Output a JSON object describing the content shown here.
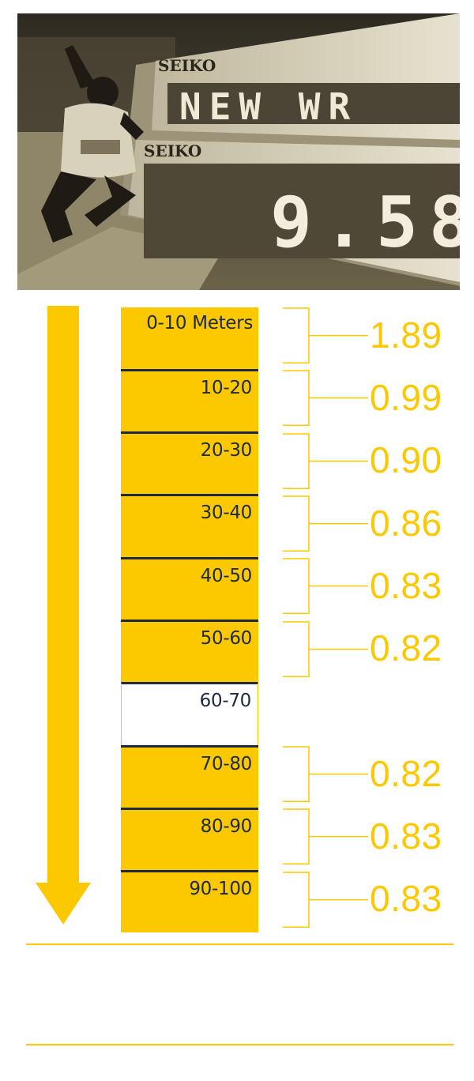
{
  "photo": {
    "board_brand_top": "SEIKO",
    "board_brand_bottom": "SEIKO",
    "board_message": "NEW WR",
    "board_time": "9.58"
  },
  "chart_data": {
    "type": "bar",
    "categories": [
      "0-10 Meters",
      "10-20",
      "20-30",
      "30-40",
      "40-50",
      "50-60",
      "60-70",
      "70-80",
      "80-90",
      "90-100"
    ],
    "series": [
      {
        "values": [
          1.89,
          0.99,
          0.9,
          0.86,
          0.83,
          0.82,
          null,
          0.82,
          0.83,
          0.83
        ]
      }
    ],
    "value_labels": [
      "1.89",
      "0.99",
      "0.90",
      "0.86",
      "0.83",
      "0.82",
      "",
      "0.82",
      "0.83",
      "0.83"
    ],
    "orientation": "vertical-track",
    "grid": false
  },
  "colors": {
    "accent": "#fcc800",
    "text_dark": "#1d2a3f",
    "background": "#ffffff"
  }
}
